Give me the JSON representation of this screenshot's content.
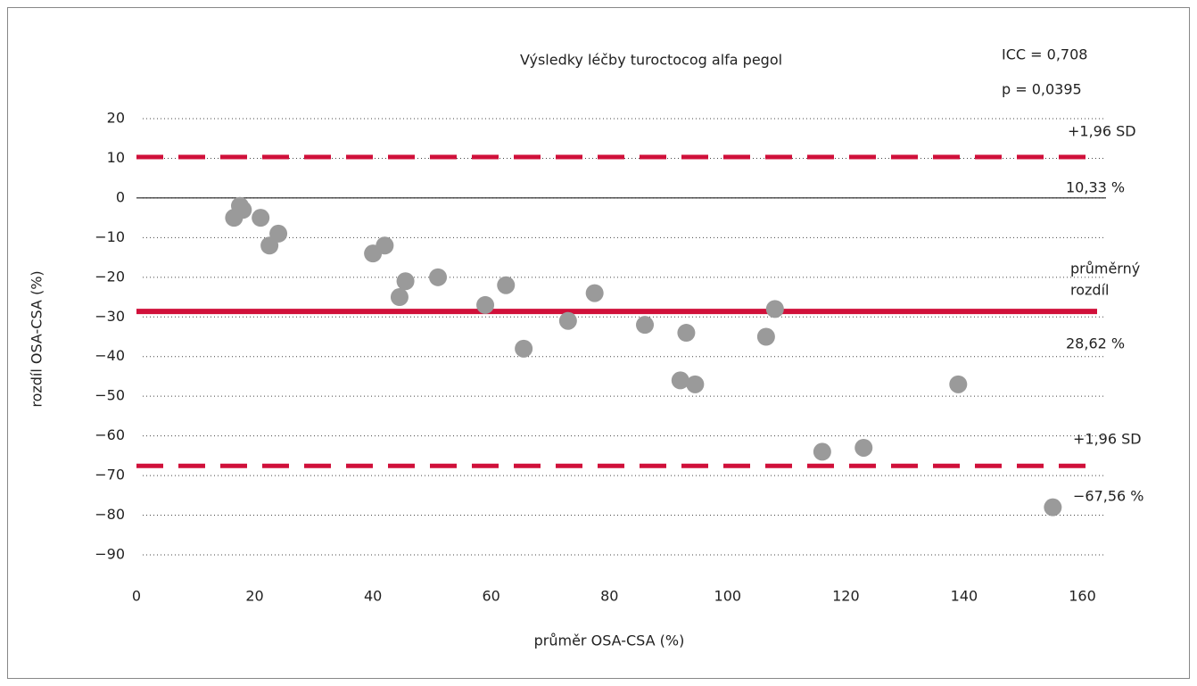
{
  "chart_data": {
    "type": "scatter",
    "title": "Výsledky léčby turoctocog alfa pegol",
    "xlabel": "průměr OSA-CSA (%)",
    "ylabel": "rozdíl OSA-CSA (%)",
    "stats": [
      "ICC = 0,708",
      "p = 0,0395"
    ],
    "x": [
      16.5,
      17.5,
      18,
      21,
      22.5,
      24,
      40,
      42,
      44.5,
      45.5,
      51,
      59,
      62.5,
      65.5,
      73,
      77.5,
      86,
      92,
      93,
      94.5,
      106.5,
      108,
      116,
      123,
      139,
      155
    ],
    "y": [
      -5,
      -2,
      -3,
      -5,
      -12,
      -9,
      -14,
      -12,
      -25,
      -21,
      -20,
      -27,
      -22,
      -38,
      -31,
      -24,
      -32,
      -46,
      -34,
      -47,
      -35,
      -28,
      -64,
      -63,
      -47,
      -78
    ],
    "color": "#9a9a9a",
    "reference_lines": [
      {
        "value": 10.33,
        "style": "dashed",
        "color": "#d0103a"
      },
      {
        "value": -28.62,
        "style": "solid",
        "color": "#d0103a"
      },
      {
        "value": -67.56,
        "style": "dashed",
        "color": "#d0103a"
      }
    ],
    "annotations": [
      "+1,96 SD",
      "10,33 %",
      "průměrný",
      "rozdíl",
      "28,62 %",
      "+1,96 SD",
      "−67,56 %"
    ],
    "xlim": [
      0,
      164
    ],
    "xticks": [
      0,
      20,
      40,
      60,
      80,
      100,
      120,
      140,
      160
    ],
    "ylim": [
      -90,
      20
    ],
    "yticks": [
      20,
      10,
      0,
      {
        "value": -10,
        "label": "−10"
      },
      {
        "value": -20,
        "label": "−20"
      },
      {
        "value": -30,
        "label": "−30"
      },
      {
        "value": -40,
        "label": "−40"
      },
      {
        "value": -50,
        "label": "−50"
      },
      {
        "value": -60,
        "label": "−60"
      },
      {
        "value": -70,
        "label": "−70"
      },
      {
        "value": -80,
        "label": "−80"
      },
      {
        "value": -90,
        "label": "−90"
      }
    ],
    "grid": true,
    "zero_line": true
  }
}
